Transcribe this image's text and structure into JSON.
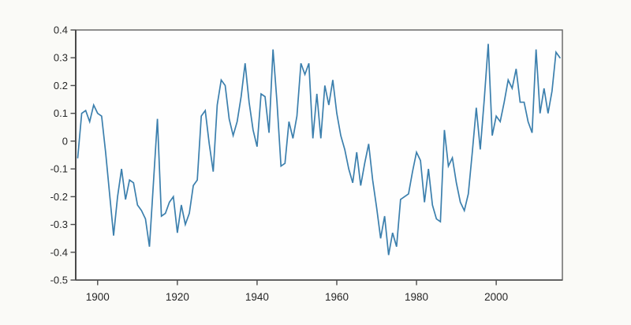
{
  "chart_data": {
    "type": "line",
    "title": "",
    "xlabel": "",
    "ylabel": "",
    "x": [
      1895,
      1896,
      1897,
      1898,
      1899,
      1900,
      1901,
      1902,
      1903,
      1904,
      1905,
      1906,
      1907,
      1908,
      1909,
      1910,
      1911,
      1912,
      1913,
      1914,
      1915,
      1916,
      1917,
      1918,
      1919,
      1920,
      1921,
      1922,
      1923,
      1924,
      1925,
      1926,
      1927,
      1928,
      1929,
      1930,
      1931,
      1932,
      1933,
      1934,
      1935,
      1936,
      1937,
      1938,
      1939,
      1940,
      1941,
      1942,
      1943,
      1944,
      1945,
      1946,
      1947,
      1948,
      1949,
      1950,
      1951,
      1952,
      1953,
      1954,
      1955,
      1956,
      1957,
      1958,
      1959,
      1960,
      1961,
      1962,
      1963,
      1964,
      1965,
      1966,
      1967,
      1968,
      1969,
      1970,
      1971,
      1972,
      1973,
      1974,
      1975,
      1976,
      1977,
      1978,
      1979,
      1980,
      1981,
      1982,
      1983,
      1984,
      1985,
      1986,
      1987,
      1988,
      1989,
      1990,
      1991,
      1992,
      1993,
      1994,
      1995,
      1996,
      1997,
      1998,
      1999,
      2000,
      2001,
      2002,
      2003,
      2004,
      2005,
      2006,
      2007,
      2008,
      2009,
      2010,
      2011,
      2012,
      2013,
      2014,
      2015,
      2016
    ],
    "values": [
      -0.06,
      0.1,
      0.11,
      0.07,
      0.13,
      0.1,
      0.09,
      -0.04,
      -0.19,
      -0.34,
      -0.2,
      -0.1,
      -0.21,
      -0.14,
      -0.15,
      -0.23,
      -0.25,
      -0.28,
      -0.38,
      -0.15,
      0.08,
      -0.27,
      -0.26,
      -0.22,
      -0.2,
      -0.33,
      -0.23,
      -0.3,
      -0.26,
      -0.16,
      -0.14,
      0.09,
      0.11,
      -0.01,
      -0.11,
      0.13,
      0.22,
      0.2,
      0.08,
      0.02,
      0.07,
      0.16,
      0.28,
      0.14,
      0.04,
      -0.02,
      0.17,
      0.16,
      0.03,
      0.33,
      0.14,
      -0.09,
      -0.08,
      0.07,
      0.01,
      0.09,
      0.28,
      0.24,
      0.28,
      0.01,
      0.17,
      0.01,
      0.2,
      0.13,
      0.22,
      0.1,
      0.02,
      -0.03,
      -0.1,
      -0.15,
      -0.04,
      -0.16,
      -0.08,
      -0.01,
      -0.14,
      -0.24,
      -0.35,
      -0.27,
      -0.41,
      -0.33,
      -0.38,
      -0.21,
      -0.2,
      -0.19,
      -0.11,
      -0.04,
      -0.07,
      -0.22,
      -0.1,
      -0.23,
      -0.28,
      -0.29,
      0.04,
      -0.09,
      -0.06,
      -0.15,
      -0.22,
      -0.25,
      -0.19,
      -0.04,
      0.12,
      -0.03,
      0.15,
      0.35,
      0.02,
      0.09,
      0.07,
      0.14,
      0.22,
      0.19,
      0.26,
      0.14,
      0.14,
      0.07,
      0.03,
      0.33,
      0.1,
      0.19,
      0.1,
      0.18,
      0.32,
      0.3
    ],
    "xlim": [
      1894.5,
      2016.6
    ],
    "ylim": [
      -0.5,
      0.4
    ],
    "x_ticks": [
      1900,
      1920,
      1940,
      1960,
      1980,
      2000
    ],
    "x_tick_labels": [
      "1900",
      "1920",
      "1940",
      "1960",
      "1980",
      "2000"
    ],
    "y_ticks": [
      0.4,
      0.3,
      0.2,
      0.1,
      0,
      -0.1,
      -0.2,
      -0.3,
      -0.4,
      -0.5
    ],
    "y_tick_labels": [
      "0.4",
      "0.3",
      "0.2",
      "0.1",
      "0",
      "-0.1",
      "-0.2",
      "-0.3",
      "-0.4",
      "-0.5"
    ],
    "grid": "off",
    "legend": "none",
    "line_color": "#3b7fad",
    "axis_color": "#6a6a6a",
    "spine_left_color": "#4a4a4a",
    "tick_color": "#4a4a4a",
    "label_color": "#262626",
    "plot_background": "#fefefe",
    "page_background": "#fafaf7"
  }
}
